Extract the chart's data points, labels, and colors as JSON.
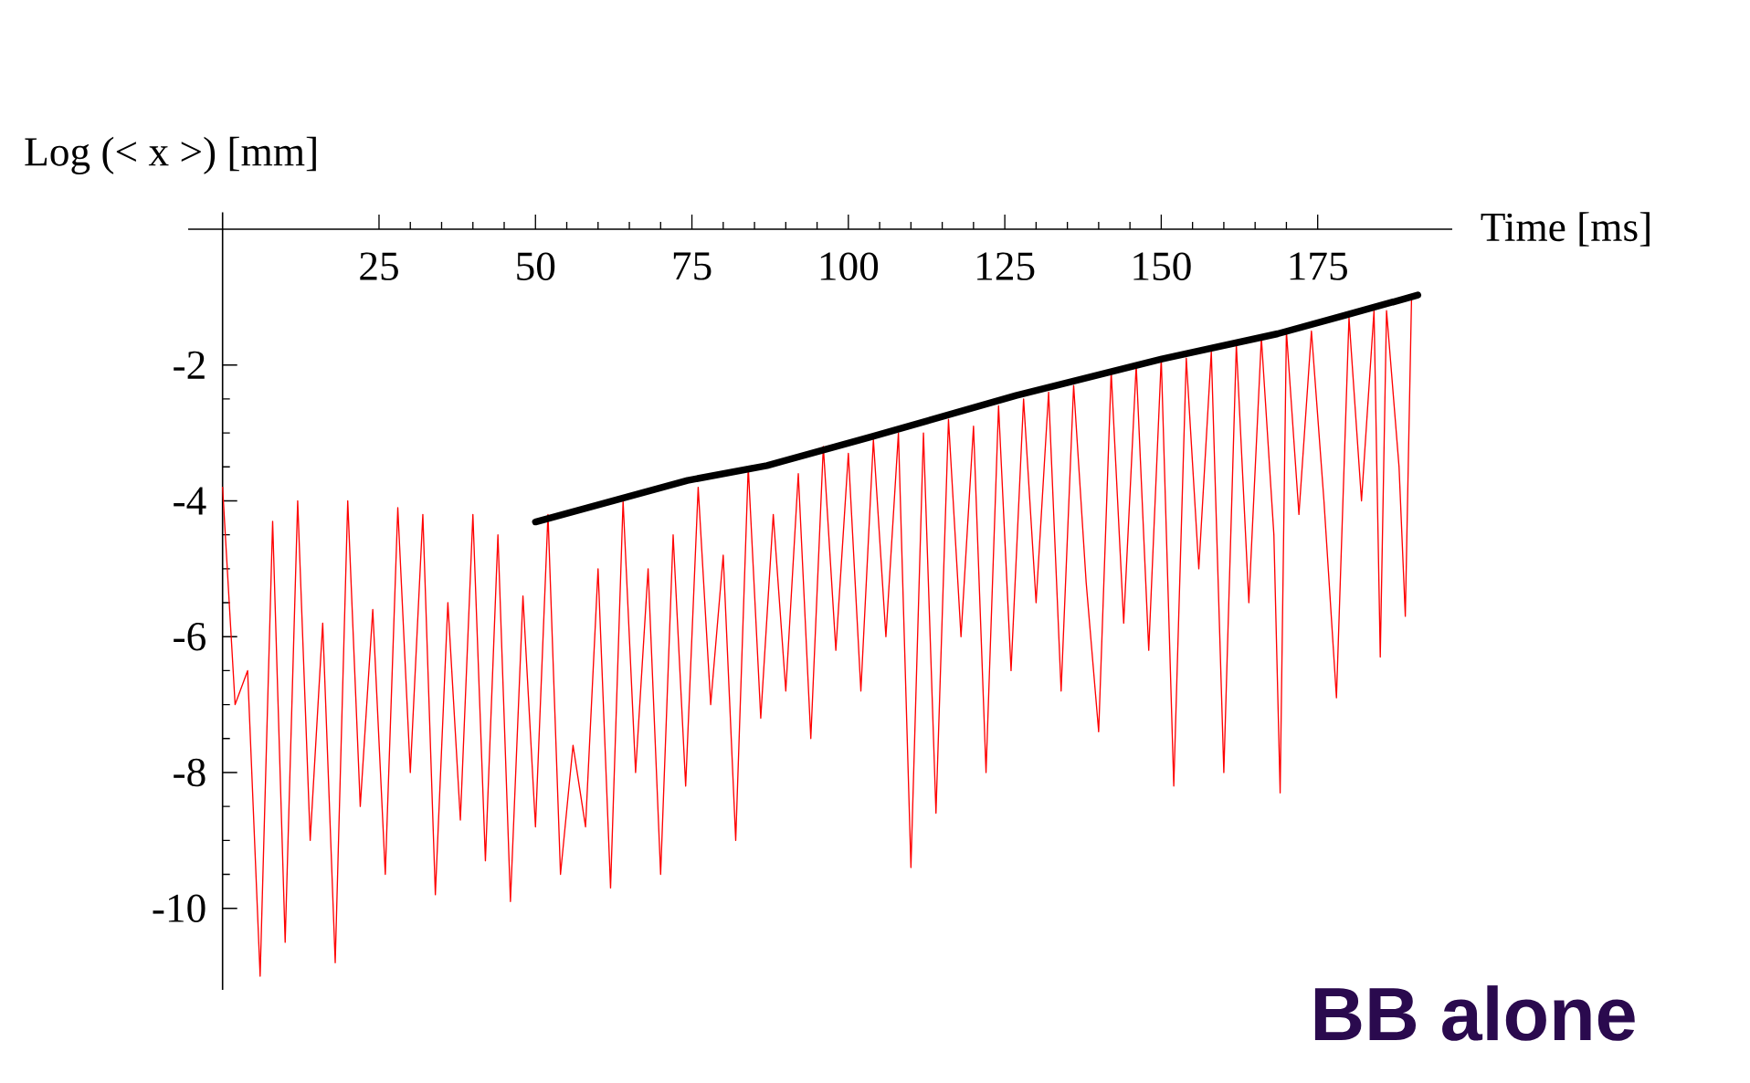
{
  "chart_data": {
    "type": "line",
    "xlabel": "Time  [ms]",
    "ylabel": "Log (< x >)  [mm]",
    "annotations": [
      "BB alone"
    ],
    "xlim": [
      -5.5,
      196.5
    ],
    "ylim": [
      -11.2,
      0.25
    ],
    "xticks": [
      25,
      50,
      75,
      100,
      125,
      150,
      175
    ],
    "yticks": [
      -10,
      -8,
      -6,
      -4,
      -2
    ],
    "series": [
      {
        "color": "#ff0000",
        "x": [
          0,
          2,
          4,
          6,
          8,
          10,
          12,
          14,
          16,
          18,
          20,
          22,
          24,
          26,
          28,
          30,
          32,
          34,
          36,
          38,
          40,
          42,
          44,
          46,
          48,
          50,
          52,
          54,
          56,
          58,
          60,
          62,
          64,
          66,
          68,
          70,
          72,
          74,
          76,
          78,
          80,
          82,
          84,
          86,
          88,
          90,
          92,
          94,
          96,
          98,
          100,
          102,
          104,
          106,
          108,
          110,
          112,
          114,
          116,
          118,
          120,
          122,
          124,
          126,
          128,
          130,
          132,
          134,
          136,
          138,
          140,
          142,
          144,
          146,
          148,
          150,
          152,
          154,
          156,
          158,
          160,
          162,
          164,
          166,
          168,
          169,
          170,
          172,
          174,
          176,
          178,
          180,
          182,
          184,
          185,
          186,
          188,
          189,
          190
        ],
        "values": [
          -3.8,
          -7.0,
          -6.5,
          -11.0,
          -4.3,
          -10.5,
          -4.0,
          -9.0,
          -5.8,
          -10.8,
          -4.0,
          -8.5,
          -5.6,
          -9.5,
          -4.1,
          -8.0,
          -4.2,
          -9.8,
          -5.5,
          -8.7,
          -4.2,
          -9.3,
          -4.5,
          -9.9,
          -5.4,
          -8.8,
          -4.2,
          -9.5,
          -7.6,
          -8.8,
          -5.0,
          -9.7,
          -4.0,
          -8.0,
          -5.0,
          -9.5,
          -4.5,
          -8.2,
          -3.8,
          -7.0,
          -4.8,
          -9.0,
          -3.5,
          -7.2,
          -4.2,
          -6.8,
          -3.6,
          -7.5,
          -3.2,
          -6.2,
          -3.3,
          -6.8,
          -3.1,
          -6.0,
          -3.0,
          -9.4,
          -3.0,
          -8.6,
          -2.8,
          -6.0,
          -2.9,
          -8.0,
          -2.6,
          -6.5,
          -2.5,
          -5.5,
          -2.4,
          -6.8,
          -2.3,
          -5.2,
          -7.4,
          -2.1,
          -5.8,
          -2.0,
          -6.2,
          -1.9,
          -8.2,
          -1.9,
          -5.0,
          -1.8,
          -8.0,
          -1.7,
          -5.5,
          -1.6,
          -4.5,
          -8.3,
          -1.5,
          -4.2,
          -1.5,
          -4.0,
          -6.9,
          -1.3,
          -4.0,
          -1.2,
          -6.3,
          -1.2,
          -3.5,
          -5.7,
          -1.0
        ]
      },
      {
        "color": "#000000",
        "x": [
          50,
          74.3,
          87,
          103.9,
          126.8,
          150.1,
          168.6,
          179.3,
          191
        ],
        "values": [
          -4.31,
          -3.7,
          -3.48,
          -3.05,
          -2.45,
          -1.91,
          -1.54,
          -1.27,
          -0.97
        ]
      }
    ]
  }
}
